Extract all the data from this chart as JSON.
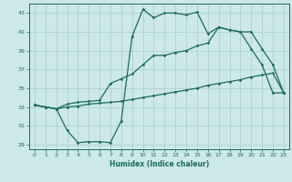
{
  "xlabel": "Humidex (Indice chaleur)",
  "bg_color": "#cce8e8",
  "grid_color": "#aacccc",
  "line_color": "#1a6b5a",
  "xlim": [
    -0.5,
    23.5
  ],
  "ylim": [
    28.5,
    44.0
  ],
  "xticks": [
    0,
    1,
    2,
    3,
    4,
    5,
    6,
    7,
    8,
    9,
    10,
    11,
    12,
    13,
    14,
    15,
    16,
    17,
    18,
    19,
    20,
    21,
    22,
    23
  ],
  "yticks": [
    29,
    31,
    33,
    35,
    37,
    39,
    41,
    43
  ],
  "line1_x": [
    0,
    1,
    2,
    3,
    4,
    5,
    6,
    7,
    8,
    9,
    10,
    11,
    12,
    13,
    14,
    15,
    16,
    17,
    18,
    19,
    20,
    21,
    22,
    23
  ],
  "line1_y": [
    33.2,
    33.0,
    32.8,
    30.5,
    29.2,
    29.3,
    29.3,
    29.2,
    31.5,
    40.5,
    43.4,
    42.5,
    43.0,
    43.0,
    42.8,
    43.1,
    40.8,
    41.5,
    41.2,
    41.0,
    39.2,
    37.5,
    34.5,
    34.5
  ],
  "line2_x": [
    0,
    1,
    2,
    3,
    4,
    5,
    6,
    7,
    8,
    9,
    10,
    11,
    12,
    13,
    14,
    15,
    16,
    17,
    18,
    19,
    20,
    21,
    22,
    23
  ],
  "line2_y": [
    33.2,
    33.0,
    32.8,
    33.3,
    33.5,
    33.6,
    33.7,
    35.5,
    36.0,
    36.5,
    37.5,
    38.5,
    38.5,
    38.8,
    39.0,
    39.5,
    39.8,
    41.5,
    41.2,
    41.0,
    41.0,
    39.2,
    37.5,
    34.5
  ],
  "line3_x": [
    0,
    1,
    2,
    3,
    4,
    5,
    6,
    7,
    8,
    9,
    10,
    11,
    12,
    13,
    14,
    15,
    16,
    17,
    18,
    19,
    20,
    21,
    22,
    23
  ],
  "line3_y": [
    33.2,
    33.0,
    32.8,
    33.0,
    33.1,
    33.3,
    33.4,
    33.5,
    33.6,
    33.8,
    34.0,
    34.2,
    34.4,
    34.6,
    34.8,
    35.0,
    35.3,
    35.5,
    35.7,
    35.9,
    36.2,
    36.4,
    36.6,
    34.5
  ]
}
